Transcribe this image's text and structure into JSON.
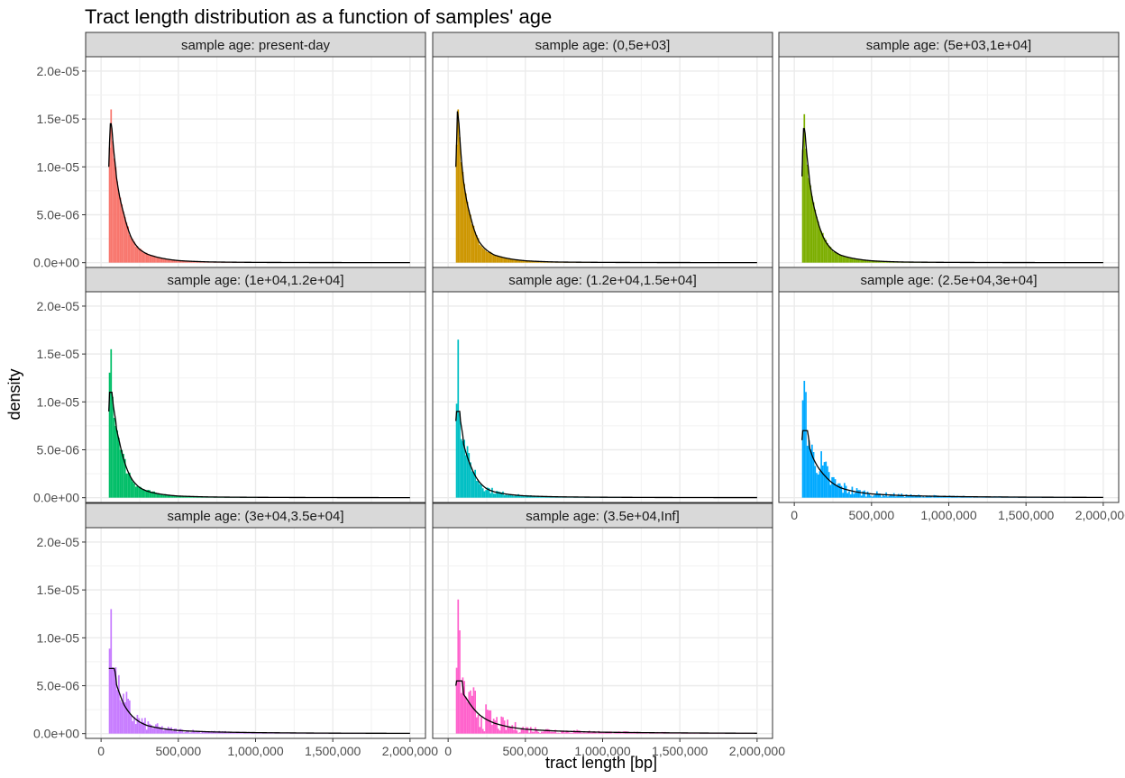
{
  "chart_data": {
    "type": "bar",
    "title": "Tract length distribution as a function of samples' age",
    "xlabel": "tract length [bp]",
    "ylabel": "density",
    "xlim": [
      -100000,
      2100000
    ],
    "ylim": [
      -5e-07,
      2.15e-05
    ],
    "xticks": [
      0,
      500000,
      1000000,
      1500000,
      2000000
    ],
    "xtick_labels": [
      "0",
      "500,000",
      "1,000,000",
      "1,500,000",
      "2,000,000"
    ],
    "yticks": [
      0,
      5e-06,
      1e-05,
      1.5e-05,
      2e-05
    ],
    "ytick_labels": [
      "0.0e+00",
      "5.0e-06",
      "1.0e-05",
      "1.5e-05",
      "2.0e-05"
    ],
    "grid": true,
    "legend": "none",
    "facets": [
      {
        "label": "sample age: present-day",
        "color": "#F8766D",
        "peak": 1.6e-05,
        "smooth_peak": 1.45e-05,
        "noise": 0.05,
        "bins": [
          [
            50000,
            1e-05
          ],
          [
            60000,
            1.6e-05
          ],
          [
            70000,
            1.4e-05
          ],
          [
            80000,
            1.2e-05
          ],
          [
            90000,
            1.05e-05
          ],
          [
            100000,
            9e-06
          ],
          [
            120000,
            7e-06
          ],
          [
            150000,
            5e-06
          ],
          [
            200000,
            2.5e-06
          ],
          [
            250000,
            1.4e-06
          ],
          [
            300000,
            9e-07
          ],
          [
            400000,
            4.5e-07
          ],
          [
            500000,
            2.2e-07
          ],
          [
            700000,
            8e-08
          ],
          [
            1000000,
            3e-08
          ],
          [
            1500000,
            1e-08
          ],
          [
            2000000,
            5e-09
          ]
        ]
      },
      {
        "label": "sample age: (0,5e+03]",
        "color": "#CD9600",
        "peak": 1.6e-05,
        "smooth_peak": 1.58e-05,
        "noise": 0.05,
        "bins": [
          [
            50000,
            1e-05
          ],
          [
            60000,
            1.6e-05
          ],
          [
            70000,
            1.45e-05
          ],
          [
            80000,
            1.2e-05
          ],
          [
            90000,
            1e-05
          ],
          [
            100000,
            8.5e-06
          ],
          [
            120000,
            6.5e-06
          ],
          [
            150000,
            4.5e-06
          ],
          [
            200000,
            2.2e-06
          ],
          [
            250000,
            1.3e-06
          ],
          [
            300000,
            8e-07
          ],
          [
            400000,
            4e-07
          ],
          [
            500000,
            2e-07
          ],
          [
            700000,
            7e-08
          ],
          [
            1000000,
            3e-08
          ],
          [
            1500000,
            1e-08
          ],
          [
            2000000,
            5e-09
          ]
        ]
      },
      {
        "label": "sample age: (5e+03,1e+04]",
        "color": "#7CAE00",
        "peak": 1.55e-05,
        "smooth_peak": 1.4e-05,
        "noise": 0.05,
        "bins": [
          [
            50000,
            9e-06
          ],
          [
            60000,
            1.55e-05
          ],
          [
            70000,
            1.35e-05
          ],
          [
            80000,
            1.15e-05
          ],
          [
            90000,
            1e-05
          ],
          [
            100000,
            8.5e-06
          ],
          [
            120000,
            6.5e-06
          ],
          [
            150000,
            4.5e-06
          ],
          [
            200000,
            2.3e-06
          ],
          [
            250000,
            1.3e-06
          ],
          [
            300000,
            8e-07
          ],
          [
            400000,
            4e-07
          ],
          [
            500000,
            2e-07
          ],
          [
            700000,
            7e-08
          ],
          [
            1000000,
            3e-08
          ],
          [
            1500000,
            1e-08
          ],
          [
            2000000,
            5e-09
          ]
        ]
      },
      {
        "label": "sample age: (1e+04,1.2e+04]",
        "color": "#00BE67",
        "peak": 1.55e-05,
        "smooth_peak": 1.1e-05,
        "noise": 0.12,
        "bins": [
          [
            50000,
            9e-06
          ],
          [
            60000,
            1.55e-05
          ],
          [
            70000,
            1.1e-05
          ],
          [
            80000,
            9.5e-06
          ],
          [
            90000,
            8.5e-06
          ],
          [
            100000,
            7.5e-06
          ],
          [
            120000,
            6e-06
          ],
          [
            150000,
            4e-06
          ],
          [
            200000,
            2e-06
          ],
          [
            250000,
            1.1e-06
          ],
          [
            300000,
            7e-07
          ],
          [
            400000,
            3.5e-07
          ],
          [
            500000,
            1.8e-07
          ],
          [
            700000,
            8e-08
          ],
          [
            1000000,
            4e-08
          ],
          [
            1500000,
            1.5e-08
          ],
          [
            2000000,
            7e-09
          ]
        ]
      },
      {
        "label": "sample age: (1.2e+04,1.5e+04]",
        "color": "#00BFC4",
        "peak": 1.65e-05,
        "smooth_peak": 9e-06,
        "noise": 0.2,
        "bins": [
          [
            50000,
            8e-06
          ],
          [
            60000,
            1.65e-05
          ],
          [
            70000,
            1.05e-05
          ],
          [
            80000,
            8e-06
          ],
          [
            90000,
            7e-06
          ],
          [
            100000,
            6e-06
          ],
          [
            120000,
            4.8e-06
          ],
          [
            150000,
            3.4e-06
          ],
          [
            200000,
            1.8e-06
          ],
          [
            250000,
            1e-06
          ],
          [
            300000,
            6.5e-07
          ],
          [
            400000,
            3.5e-07
          ],
          [
            500000,
            2e-07
          ],
          [
            700000,
            1e-07
          ],
          [
            1000000,
            5e-08
          ],
          [
            1500000,
            2e-08
          ],
          [
            2000000,
            1e-08
          ]
        ]
      },
      {
        "label": "sample age: (2.5e+04,3e+04]",
        "color": "#00A9FF",
        "peak": 1.22e-05,
        "smooth_peak": 7e-06,
        "noise": 0.35,
        "bins": [
          [
            50000,
            6e-06
          ],
          [
            60000,
            1.1e-05
          ],
          [
            70000,
            1.22e-05
          ],
          [
            80000,
            8.5e-06
          ],
          [
            90000,
            6.5e-06
          ],
          [
            100000,
            5.5e-06
          ],
          [
            120000,
            4.5e-06
          ],
          [
            150000,
            3.5e-06
          ],
          [
            200000,
            2.4e-06
          ],
          [
            250000,
            1.6e-06
          ],
          [
            300000,
            1.1e-06
          ],
          [
            400000,
            6.5e-07
          ],
          [
            500000,
            4.2e-07
          ],
          [
            700000,
            2.4e-07
          ],
          [
            1000000,
            1.3e-07
          ],
          [
            1500000,
            6e-08
          ],
          [
            2000000,
            3e-08
          ]
        ]
      },
      {
        "label": "sample age: (3e+04,3.5e+04]",
        "color": "#C77CFF",
        "peak": 1.3e-05,
        "smooth_peak": 6.8e-06,
        "noise": 0.3,
        "bins": [
          [
            50000,
            7e-06
          ],
          [
            60000,
            1.3e-05
          ],
          [
            70000,
            1.1e-05
          ],
          [
            80000,
            7.5e-06
          ],
          [
            90000,
            6.5e-06
          ],
          [
            100000,
            5.5e-06
          ],
          [
            120000,
            4.5e-06
          ],
          [
            150000,
            3.2e-06
          ],
          [
            200000,
            2e-06
          ],
          [
            250000,
            1.3e-06
          ],
          [
            300000,
            9e-07
          ],
          [
            400000,
            5.5e-07
          ],
          [
            500000,
            3.5e-07
          ],
          [
            700000,
            2e-07
          ],
          [
            1000000,
            1.1e-07
          ],
          [
            1500000,
            5e-08
          ],
          [
            2000000,
            3e-08
          ]
        ]
      },
      {
        "label": "sample age: (3.5e+04,Inf]",
        "color": "#FF61CC",
        "peak": 1.4e-05,
        "smooth_peak": 5.5e-06,
        "noise": 0.4,
        "bins": [
          [
            50000,
            5e-06
          ],
          [
            60000,
            1.4e-05
          ],
          [
            70000,
            9e-06
          ],
          [
            80000,
            7e-06
          ],
          [
            90000,
            5.5e-06
          ],
          [
            100000,
            4.5e-06
          ],
          [
            120000,
            4e-06
          ],
          [
            150000,
            3.2e-06
          ],
          [
            200000,
            2.2e-06
          ],
          [
            250000,
            1.6e-06
          ],
          [
            300000,
            1.2e-06
          ],
          [
            400000,
            7.5e-07
          ],
          [
            500000,
            5e-07
          ],
          [
            700000,
            3e-07
          ],
          [
            1000000,
            1.6e-07
          ],
          [
            1500000,
            8e-08
          ],
          [
            2000000,
            4e-08
          ]
        ]
      }
    ]
  }
}
